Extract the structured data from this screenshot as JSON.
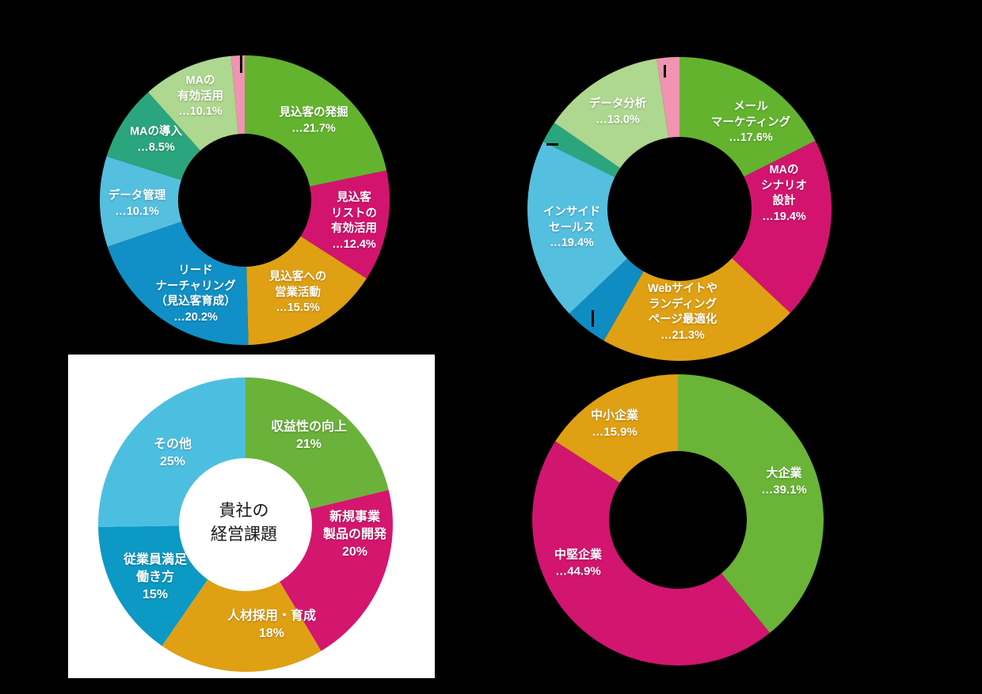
{
  "page": {
    "background": "#000000",
    "panel_background": "#ffffff"
  },
  "chart_data": [
    {
      "id": "donut-ma-issues",
      "type": "donut",
      "title": "",
      "legend_position": "none",
      "labels_on_slices": true,
      "unit": "%",
      "slices": [
        {
          "category": "見込客の発掘",
          "value": 21.7,
          "color": "#64b32f",
          "label_lines": [
            "見込客の発掘",
            "…21.7%"
          ]
        },
        {
          "category": "見込客リストの有効活用",
          "value": 12.4,
          "color": "#d2146f",
          "label_lines": [
            "見込客",
            "リストの",
            "有効活用",
            "…12.4%"
          ]
        },
        {
          "category": "見込客への営業活動",
          "value": 15.5,
          "color": "#dfa013",
          "label_lines": [
            "見込客への",
            "営業活動",
            "…15.5%"
          ]
        },
        {
          "category": "リードナーチャリング（見込客育成）",
          "value": 20.2,
          "color": "#1090c6",
          "label_lines": [
            "リード",
            "ナーチャリング",
            "（見込客育成）",
            "…20.2%"
          ]
        },
        {
          "category": "データ管理",
          "value": 10.1,
          "color": "#54bfdf",
          "label_lines": [
            "データ管理",
            "…10.1%"
          ]
        },
        {
          "category": "MAの導入",
          "value": 8.5,
          "color": "#2ba57d",
          "label_lines": [
            "MAの導入",
            "…8.5%"
          ]
        },
        {
          "category": "MAの有効活用",
          "value": 10.1,
          "color": "#aed78f",
          "label_lines": [
            "MAの",
            "有効活用",
            "…10.1%"
          ]
        },
        {
          "category": "",
          "value": 1.5,
          "color": "#f094b2",
          "label_lines": []
        }
      ]
    },
    {
      "id": "donut-ma-measures",
      "type": "donut",
      "title": "",
      "legend_position": "none",
      "labels_on_slices": true,
      "unit": "%",
      "slices": [
        {
          "category": "メールマーケティング",
          "value": 17.6,
          "color": "#64b32f",
          "label_lines": [
            "メール",
            "マーケティング",
            "…17.6%"
          ]
        },
        {
          "category": "MAのシナリオ設計",
          "value": 19.4,
          "color": "#d2146f",
          "label_lines": [
            "MAの",
            "シナリオ",
            "設計",
            "…19.4%"
          ]
        },
        {
          "category": "Webサイトやランディングページ最適化",
          "value": 21.3,
          "color": "#dfa013",
          "label_lines": [
            "Webサイトや",
            "ランディング",
            "ページ最適化",
            "…21.3%"
          ]
        },
        {
          "category": "",
          "value": 4.6,
          "color": "#0f8cc2",
          "label_lines": []
        },
        {
          "category": "インサイドセールス",
          "value": 19.4,
          "color": "#54bfdf",
          "label_lines": [
            "インサイド",
            "セールス",
            "…19.4%"
          ]
        },
        {
          "category": "",
          "value": 2.3,
          "color": "#2ba57d",
          "label_lines": []
        },
        {
          "category": "データ分析",
          "value": 13.0,
          "color": "#aed78f",
          "label_lines": [
            "データ分析",
            "…13.0%"
          ]
        },
        {
          "category": "",
          "value": 2.4,
          "color": "#f094b2",
          "label_lines": []
        }
      ]
    },
    {
      "id": "donut-management-issues",
      "type": "donut",
      "title": "貴社の経営課題",
      "center_label_lines": [
        "貴社の",
        "経営課題"
      ],
      "legend_position": "none",
      "labels_on_slices": true,
      "unit": "%",
      "slices": [
        {
          "category": "収益性の向上",
          "value": 21,
          "color": "#6ab23a",
          "label_lines": [
            "収益性の向上",
            "21%"
          ]
        },
        {
          "category": "新規事業製品の開発",
          "value": 20,
          "color": "#d5166e",
          "label_lines": [
            "新規事業",
            "製品の開発",
            "20%"
          ]
        },
        {
          "category": "人材採用・育成",
          "value": 18,
          "color": "#dfa013",
          "label_lines": [
            "人材採用・育成",
            "18%"
          ]
        },
        {
          "category": "従業員満足働き方",
          "value": 15,
          "color": "#0c99c4",
          "label_lines": [
            "従業員満足",
            "働き方",
            "15%"
          ]
        },
        {
          "category": "その他",
          "value": 25,
          "color": "#4cbfe1",
          "label_lines": [
            "その他",
            "25%"
          ]
        }
      ]
    },
    {
      "id": "donut-company-size",
      "type": "donut",
      "title": "",
      "legend_position": "none",
      "labels_on_slices": true,
      "unit": "%",
      "slices": [
        {
          "category": "大企業",
          "value": 39.1,
          "color": "#6ab437",
          "label_lines": [
            "大企業",
            "…39.1%"
          ]
        },
        {
          "category": "中堅企業",
          "value": 44.9,
          "color": "#d2156f",
          "label_lines": [
            "中堅企業",
            "…44.9%"
          ]
        },
        {
          "category": "中小企業",
          "value": 15.9,
          "color": "#dfa013",
          "label_lines": [
            "中小企業",
            "…15.9%"
          ]
        }
      ]
    }
  ]
}
